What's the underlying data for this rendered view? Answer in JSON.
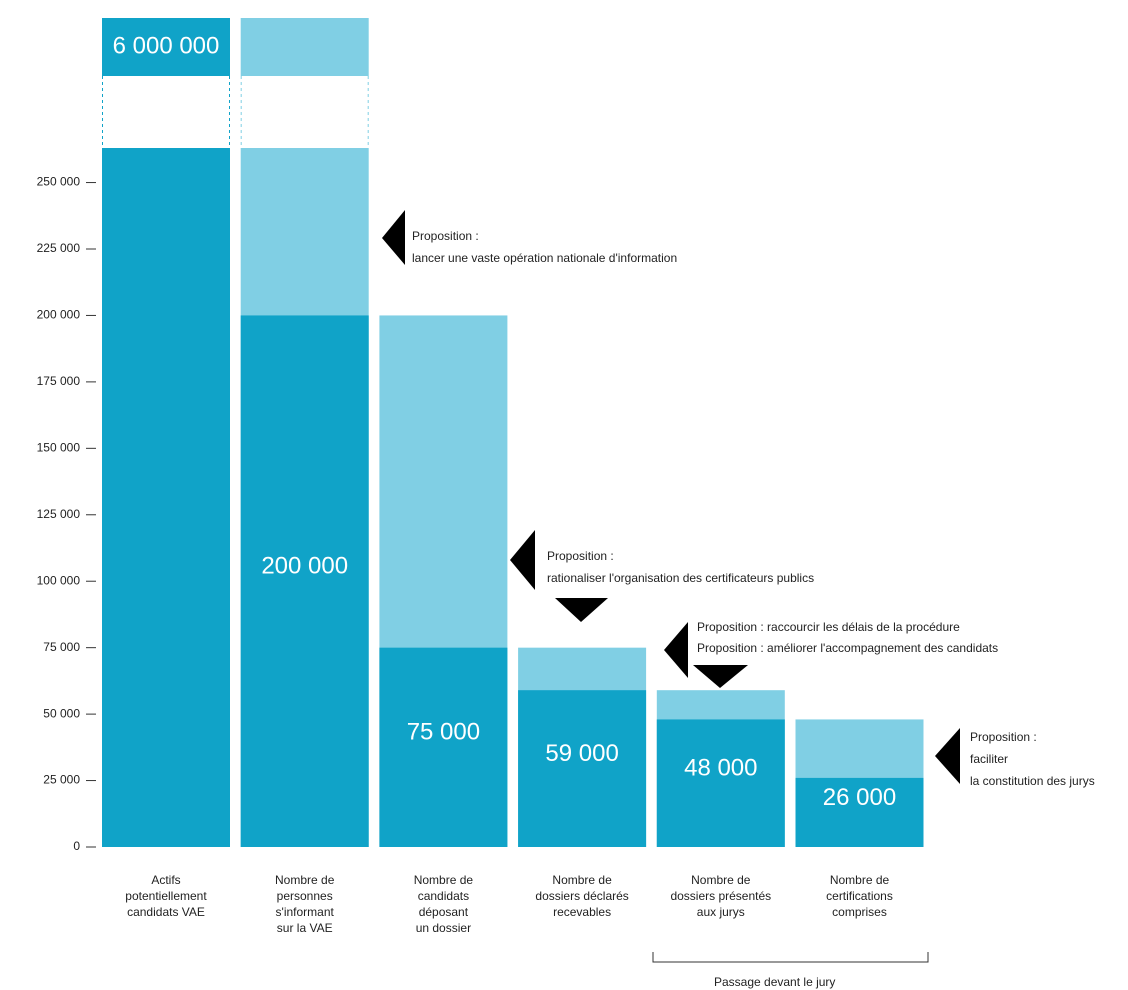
{
  "chart_data": {
    "type": "bar",
    "categories": [
      "Actifs\npotentiellement\ncandidats VAE",
      "Nombre de\npersonnes\ns'informant\nsur la VAE",
      "Nombre de\ncandidats\ndéposant\nun dossier",
      "Nombre de\ndossiers déclarés\nrecevables",
      "Nombre de\ndossiers présentés\naux jurys",
      "Nombre de\ncertifications\ncomprises"
    ],
    "values": [
      6000000,
      200000,
      75000,
      59000,
      48000,
      26000
    ],
    "value_labels": [
      "6 000 000",
      "200 000",
      "75 000",
      "59 000",
      "48 000",
      "26 000"
    ],
    "prior_values": [
      null,
      6000000,
      200000,
      75000,
      59000,
      48000
    ],
    "color": "#10a3c8",
    "prior_color": "#80cfe4",
    "ylim": [
      0,
      263000
    ],
    "yticks": [
      0,
      {
        "value": 25000,
        "label": "25 000"
      },
      {
        "value": 50000,
        "label": "50 000"
      },
      {
        "value": 75000,
        "label": "75 000"
      },
      {
        "value": 100000,
        "label": "100 000"
      },
      {
        "value": 125000,
        "label": "125 000"
      },
      {
        "value": 150000,
        "label": "150 000"
      },
      {
        "value": 175000,
        "label": "175 000"
      },
      {
        "value": 200000,
        "label": "200 000"
      },
      {
        "value": 225000,
        "label": "225 000"
      },
      {
        "value": 250000,
        "label": "250 000"
      }
    ],
    "annotations": [
      "Proposition :\nlancer une vaste opération nationale d'information",
      "Proposition :\nrationaliser l'organisation des certificateurs publics",
      "Proposition : raccourcir les délais de la procédure",
      "Proposition : améliorer l'accompagnement des candidats",
      "Proposition :\nfaciliter\nla constitution des jurys"
    ],
    "group_label": "Passage devant le jury"
  }
}
